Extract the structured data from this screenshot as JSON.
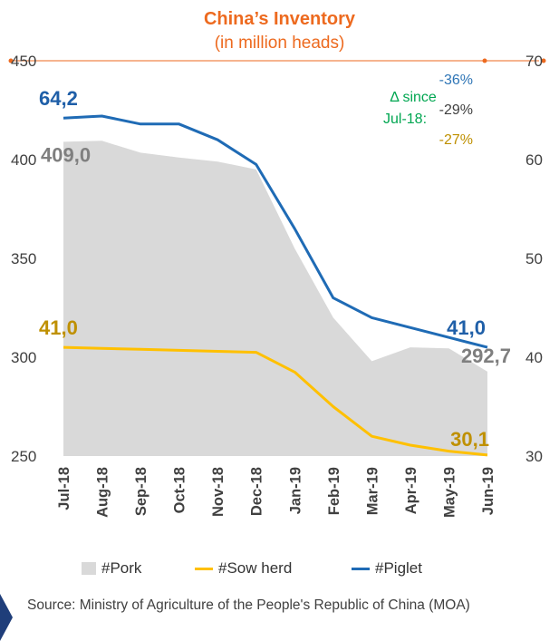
{
  "header": {
    "title": "China’s Inventory",
    "subtitle": "(in million heads)"
  },
  "chart_data": {
    "type": "line",
    "categories": [
      "Jul-18",
      "Aug-18",
      "Sep-18",
      "Oct-18",
      "Nov-18",
      "Dec-18",
      "Jan-19",
      "Feb-19",
      "Mar-19",
      "Apr-19",
      "May-19",
      "Jun-19"
    ],
    "left_axis": {
      "ticks": [
        "450",
        "400",
        "350",
        "300",
        "250"
      ],
      "ylim": [
        250,
        450
      ]
    },
    "right_axis": {
      "ticks": [
        "70",
        "60",
        "50",
        "40",
        "30"
      ],
      "ylim": [
        30,
        70
      ]
    },
    "series": [
      {
        "name": "#Pork",
        "type": "area",
        "axis": "left",
        "color": "#D9D9D9",
        "values": [
          409.0,
          409.5,
          403.5,
          401.0,
          399.0,
          395.0,
          355.0,
          320.0,
          298.0,
          305.0,
          304.5,
          292.7
        ],
        "start_label": "409,0",
        "end_label": "292,7",
        "label_color": "#7F7F7F"
      },
      {
        "name": "#Sow herd",
        "type": "line",
        "axis": "right",
        "color": "#FFC000",
        "values": [
          41.0,
          40.9,
          40.8,
          40.7,
          40.6,
          40.5,
          38.5,
          35.0,
          32.0,
          31.1,
          30.5,
          30.1
        ],
        "start_label": "41,0",
        "end_label": "30,1",
        "label_color": "#BF9000"
      },
      {
        "name": "#Piglet",
        "type": "line",
        "axis": "right",
        "color": "#1F6BB5",
        "values": [
          64.2,
          64.4,
          63.6,
          63.6,
          62.0,
          59.5,
          53.0,
          46.0,
          44.0,
          43.0,
          42.0,
          41.0
        ],
        "start_label": "64,2",
        "end_label": "41,0",
        "label_color": "#1F5FA8"
      }
    ],
    "delta": {
      "label_line1": "Δ since",
      "label_line2": "Jul-18:",
      "label_color": "#00A651",
      "piglet": "-36%",
      "piglet_color": "#2E75B6",
      "pork": "-29%",
      "pork_color": "#404040",
      "sow": "-27%",
      "sow_color": "#BF9000"
    }
  },
  "legend": {
    "pork": "#Pork",
    "sow": "#Sow herd",
    "piglet": "#Piglet"
  },
  "source": "Source: Ministry of Agriculture of the People's Republic of China (MOA)"
}
